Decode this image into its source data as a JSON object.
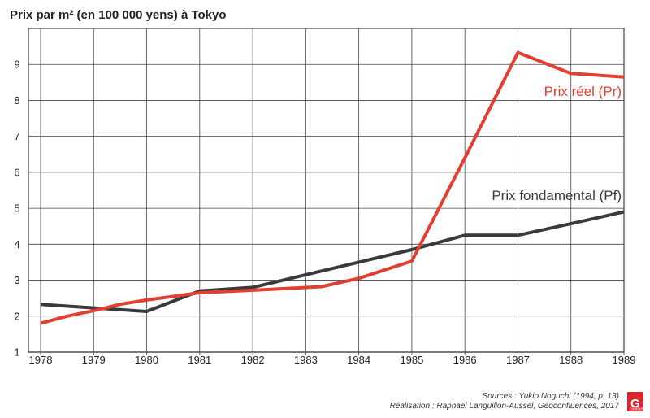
{
  "chart_data": {
    "type": "line",
    "title": "Prix par m² (en 100 000 yens) à Tokyo",
    "xlabel": "",
    "ylabel": "",
    "xlim": [
      1978,
      1989
    ],
    "ylim": [
      1,
      10
    ],
    "x_ticks": [
      1978,
      1979,
      1980,
      1981,
      1982,
      1983,
      1984,
      1985,
      1986,
      1987,
      1988,
      1989
    ],
    "y_ticks": [
      1,
      2,
      3,
      4,
      5,
      6,
      7,
      8,
      9
    ],
    "grid": true,
    "legend": "inline labels",
    "series": [
      {
        "name": "Prix fondamental (Pf)",
        "color": "#3a3a3a",
        "x": [
          1978,
          1979,
          1980,
          1981,
          1982,
          1983,
          1984,
          1985,
          1986,
          1987,
          1988,
          1989
        ],
        "values": [
          2.33,
          2.23,
          2.13,
          2.7,
          2.8,
          3.15,
          3.5,
          3.85,
          4.25,
          4.25,
          4.57,
          4.9
        ]
      },
      {
        "name": "Prix réel (Pr)",
        "color": "#e0402f",
        "x": [
          1978,
          1978.5,
          1979,
          1979.5,
          1980,
          1980.5,
          1981,
          1982,
          1983.3,
          1984,
          1985,
          1986,
          1987,
          1988,
          1989
        ],
        "values": [
          1.8,
          2.0,
          2.15,
          2.33,
          2.45,
          2.55,
          2.65,
          2.72,
          2.82,
          3.05,
          3.53,
          6.4,
          9.33,
          8.75,
          8.65
        ]
      }
    ],
    "annotations": {
      "sources": "Sources : Yukio Noguchi (1994, p. 13)",
      "realisation": "Réalisation : Raphaël Languillon-Aussel, Géoconfluences, 2017"
    }
  },
  "logo": {
    "letter": "G",
    "sub": "confluences",
    "color": "#d7262e"
  }
}
